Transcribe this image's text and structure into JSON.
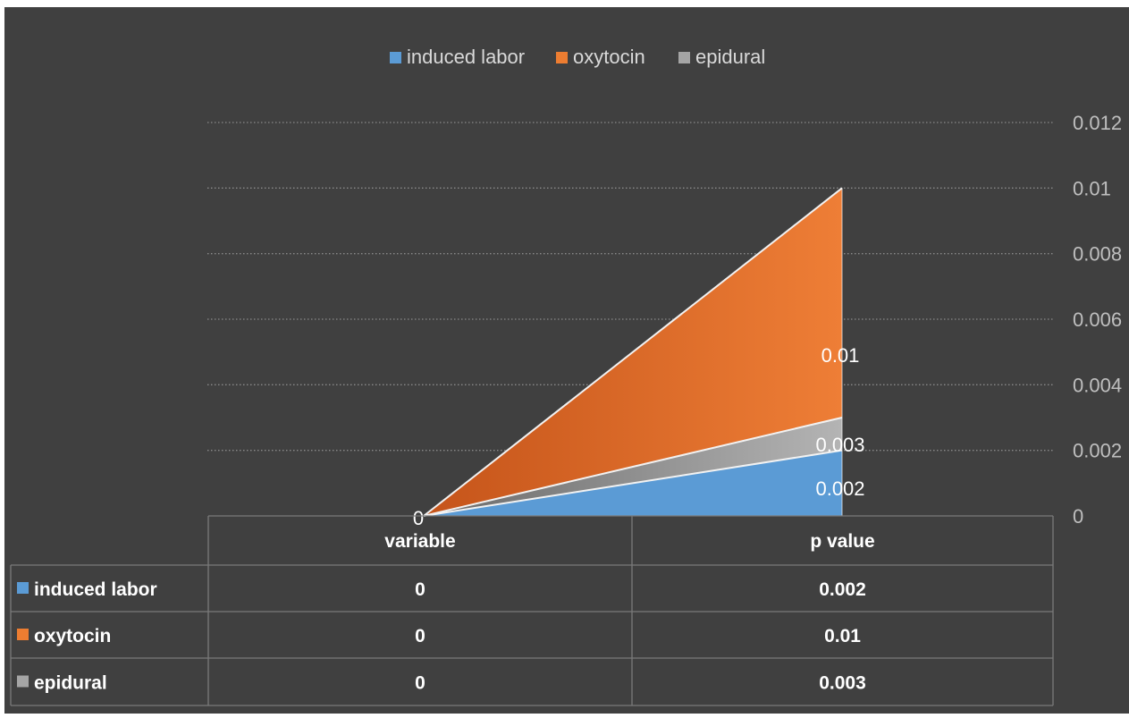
{
  "chart_data": {
    "type": "area",
    "categories": [
      "variable",
      "p value"
    ],
    "series": [
      {
        "name": "induced labor",
        "values": [
          0,
          0.002
        ],
        "color": "#5b9bd5"
      },
      {
        "name": "oxytocin",
        "values": [
          0,
          0.01
        ],
        "color": "#ed7d31"
      },
      {
        "name": "epidural",
        "values": [
          0,
          0.003
        ],
        "color": "#a5a5a5"
      }
    ],
    "data_labels": [
      {
        "category": "variable",
        "text": "0"
      },
      {
        "category": "p value",
        "text": "0.01"
      },
      {
        "category": "p value",
        "text": "0.003"
      },
      {
        "category": "p value",
        "text": "0.002"
      }
    ],
    "y_ticks": [
      "0",
      "0.002",
      "0.004",
      "0.006",
      "0.008",
      "0.01",
      "0.012"
    ],
    "ylim": [
      0,
      0.012
    ],
    "y_axis_position": "right",
    "grid": true,
    "legend_position": "top",
    "data_table": {
      "columns": [
        "variable",
        "p value"
      ],
      "rows": [
        {
          "label": "induced labor",
          "values": [
            "0",
            "0.002"
          ]
        },
        {
          "label": "oxytocin",
          "values": [
            "0",
            "0.01"
          ]
        },
        {
          "label": "epidural",
          "values": [
            "0",
            "0.003"
          ]
        }
      ]
    },
    "background_color": "#404040"
  }
}
